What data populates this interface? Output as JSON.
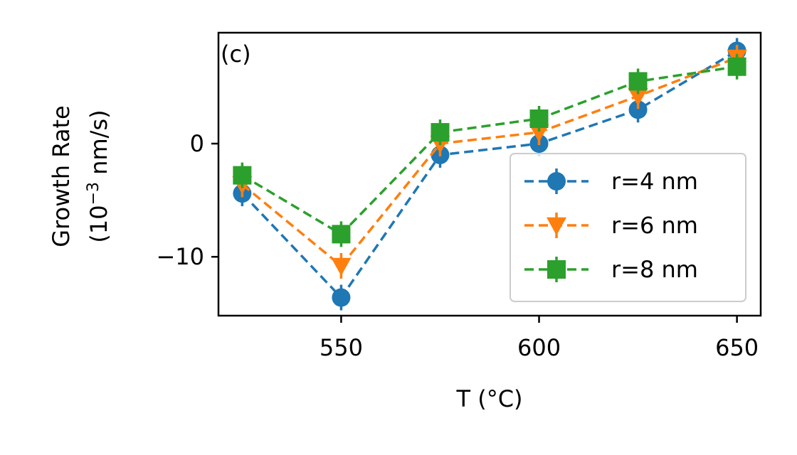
{
  "chart_data": {
    "type": "line",
    "panel_label": "(c)",
    "xlabel": "T (°C)",
    "ylabel_line1": "Growth Rate",
    "ylabel_line2_prefix": "(10",
    "ylabel_line2_exponent": "−3",
    "ylabel_line2_suffix": " nm/s)",
    "x": [
      525,
      550,
      575,
      600,
      625,
      650
    ],
    "xlim": [
      519,
      656
    ],
    "ylim": [
      -15.2,
      9.8
    ],
    "xticks": [
      550,
      600,
      650
    ],
    "xtick_labels": [
      "550",
      "600",
      "650"
    ],
    "yticks": [
      -10,
      0
    ],
    "ytick_labels": [
      "−10",
      "0"
    ],
    "grid": false,
    "legend_position": "lower-right",
    "series": [
      {
        "name": "r=4 nm",
        "marker": "circle",
        "color": "#1f77b4",
        "values": [
          -4.4,
          -13.6,
          -1.0,
          0.0,
          3.0,
          8.2
        ]
      },
      {
        "name": "r=6 nm",
        "marker": "triangle-down",
        "color": "#ff7f0e",
        "values": [
          -3.6,
          -10.8,
          0.0,
          1.0,
          4.2,
          7.6
        ]
      },
      {
        "name": "r=8 nm",
        "marker": "square",
        "color": "#2ca02c",
        "values": [
          -2.8,
          -8.0,
          1.0,
          2.2,
          5.5,
          6.8
        ]
      }
    ]
  }
}
